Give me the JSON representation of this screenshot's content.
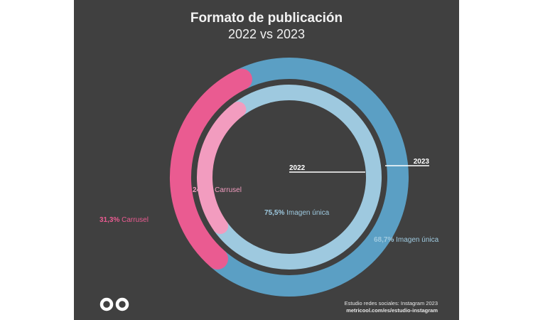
{
  "header": {
    "title": "Formato de publicación",
    "subtitle": "2022 vs 2023"
  },
  "footer": {
    "line1": "Estudio redes sociales: Instagram 2023",
    "line2": "metricool.com/es/estudio-instagram"
  },
  "colors": {
    "background": "#404040",
    "outer_carrusel": "#ea5b91",
    "outer_imagen": "#5b9fc4",
    "inner_carrusel": "#f29cbf",
    "inner_imagen": "#9ec9df"
  },
  "chart_data": {
    "type": "pie",
    "style": "nested donut",
    "rings": [
      {
        "name": "2023",
        "position": "outer",
        "slices": [
          {
            "label": "Carrusel",
            "value": 31.3,
            "display": "31,3%",
            "color": "#ea5b91"
          },
          {
            "label": "Imagen única",
            "value": 68.7,
            "display": "68,7%",
            "color": "#5b9fc4"
          }
        ]
      },
      {
        "name": "2022",
        "position": "inner",
        "slices": [
          {
            "label": "Carrusel",
            "value": 24.6,
            "display": "24,6%",
            "color": "#f29cbf"
          },
          {
            "label": "Imagen única",
            "value": 75.5,
            "display": "75,5%",
            "color": "#9ec9df"
          }
        ]
      }
    ]
  }
}
